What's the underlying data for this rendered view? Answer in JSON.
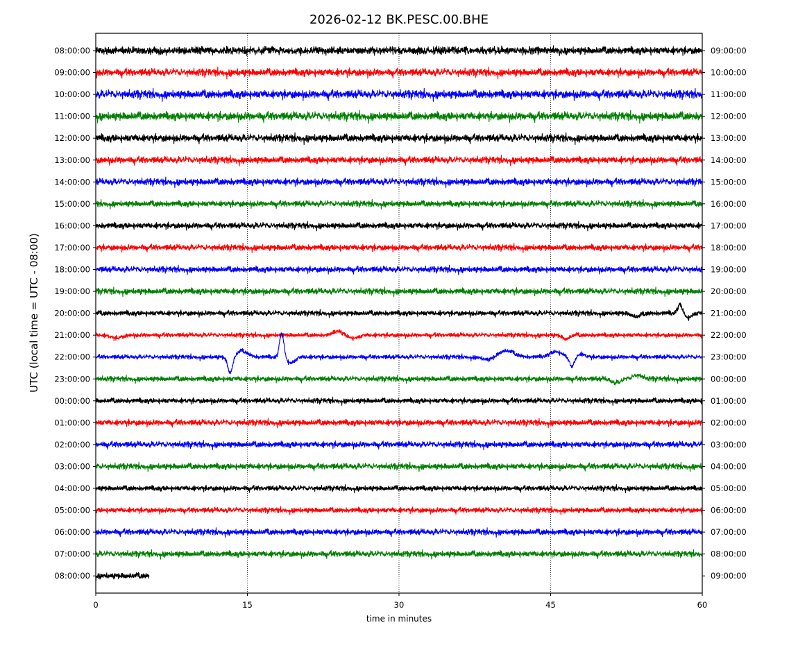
{
  "chart_data": {
    "type": "line",
    "title": "2026-02-12 BK.PESC.00.BHE",
    "xlabel": "time in minutes",
    "ylabel": "UTC (local time = UTC - 08:00)",
    "xlim": [
      0,
      60
    ],
    "x_ticks": [
      0,
      15,
      30,
      45,
      60
    ],
    "x_tick_labels": [
      "0",
      "15",
      "30",
      "45",
      "60"
    ],
    "grid": "vertical dotted lines at 15, 30, 45 minutes",
    "colors": [
      "#000000",
      "#ff0000",
      "#0000ff",
      "#008000"
    ],
    "left_tick_labels": [
      "08:00:00",
      "09:00:00",
      "10:00:00",
      "11:00:00",
      "12:00:00",
      "13:00:00",
      "14:00:00",
      "15:00:00",
      "16:00:00",
      "17:00:00",
      "18:00:00",
      "19:00:00",
      "20:00:00",
      "21:00:00",
      "22:00:00",
      "23:00:00",
      "00:00:00",
      "01:00:00",
      "02:00:00",
      "03:00:00",
      "04:00:00",
      "05:00:00",
      "06:00:00",
      "07:00:00",
      "08:00:00"
    ],
    "right_tick_labels": [
      "09:00:00",
      "10:00:00",
      "11:00:00",
      "12:00:00",
      "13:00:00",
      "14:00:00",
      "15:00:00",
      "16:00:00",
      "17:00:00",
      "18:00:00",
      "19:00:00",
      "20:00:00",
      "21:00:00",
      "22:00:00",
      "23:00:00",
      "00:00:00",
      "01:00:00",
      "02:00:00",
      "03:00:00",
      "04:00:00",
      "05:00:00",
      "06:00:00",
      "07:00:00",
      "08:00:00",
      "09:00:00"
    ],
    "traces": [
      {
        "hour": "08:00:00",
        "color": "#000000",
        "end_minute": 60,
        "noise": 1.0,
        "events": []
      },
      {
        "hour": "09:00:00",
        "color": "#ff0000",
        "end_minute": 60,
        "noise": 1.0,
        "events": []
      },
      {
        "hour": "10:00:00",
        "color": "#0000ff",
        "end_minute": 60,
        "noise": 1.1,
        "events": []
      },
      {
        "hour": "11:00:00",
        "color": "#008000",
        "end_minute": 60,
        "noise": 1.1,
        "events": []
      },
      {
        "hour": "12:00:00",
        "color": "#000000",
        "end_minute": 60,
        "noise": 1.0,
        "events": []
      },
      {
        "hour": "13:00:00",
        "color": "#ff0000",
        "end_minute": 60,
        "noise": 0.9,
        "events": []
      },
      {
        "hour": "14:00:00",
        "color": "#0000ff",
        "end_minute": 60,
        "noise": 0.9,
        "events": []
      },
      {
        "hour": "15:00:00",
        "color": "#008000",
        "end_minute": 60,
        "noise": 0.8,
        "events": []
      },
      {
        "hour": "16:00:00",
        "color": "#000000",
        "end_minute": 60,
        "noise": 0.8,
        "events": []
      },
      {
        "hour": "17:00:00",
        "color": "#ff0000",
        "end_minute": 60,
        "noise": 0.8,
        "events": []
      },
      {
        "hour": "18:00:00",
        "color": "#0000ff",
        "end_minute": 60,
        "noise": 0.8,
        "events": []
      },
      {
        "hour": "19:00:00",
        "color": "#008000",
        "end_minute": 60,
        "noise": 0.8,
        "events": []
      },
      {
        "hour": "20:00:00",
        "color": "#000000",
        "end_minute": 60,
        "noise": 0.7,
        "events": [
          {
            "t": 53.5,
            "a": 1.2,
            "w": 0.6
          },
          {
            "t": 57.8,
            "a": -3.0,
            "w": 0.35
          },
          {
            "t": 58.6,
            "a": 1.5,
            "w": 0.5
          }
        ]
      },
      {
        "hour": "21:00:00",
        "color": "#ff0000",
        "end_minute": 60,
        "noise": 0.6,
        "events": [
          {
            "t": 2.0,
            "a": 1.0,
            "w": 0.8
          },
          {
            "t": 24.0,
            "a": -1.5,
            "w": 0.6
          },
          {
            "t": 25.5,
            "a": 1.0,
            "w": 0.8
          },
          {
            "t": 46.5,
            "a": 1.3,
            "w": 0.5
          }
        ]
      },
      {
        "hour": "22:00:00",
        "color": "#0000ff",
        "end_minute": 60,
        "noise": 0.6,
        "events": [
          {
            "t": 13.3,
            "a": 5.5,
            "w": 0.35
          },
          {
            "t": 14.5,
            "a": -2.0,
            "w": 0.8
          },
          {
            "t": 18.4,
            "a": -8.5,
            "w": 0.3
          },
          {
            "t": 19.3,
            "a": 2.0,
            "w": 0.6
          },
          {
            "t": 40.5,
            "a": -2.2,
            "w": 1.2
          },
          {
            "t": 39.0,
            "a": 1.2,
            "w": 0.9
          },
          {
            "t": 45.5,
            "a": -1.8,
            "w": 0.9
          },
          {
            "t": 47.1,
            "a": 3.5,
            "w": 0.35
          },
          {
            "t": 48.0,
            "a": -1.0,
            "w": 0.5
          }
        ]
      },
      {
        "hour": "23:00:00",
        "color": "#008000",
        "end_minute": 60,
        "noise": 0.7,
        "events": [
          {
            "t": 51.5,
            "a": 1.3,
            "w": 0.7
          },
          {
            "t": 53.6,
            "a": -1.2,
            "w": 0.7
          }
        ]
      },
      {
        "hour": "00:00:00",
        "color": "#000000",
        "end_minute": 60,
        "noise": 0.7,
        "events": []
      },
      {
        "hour": "01:00:00",
        "color": "#ff0000",
        "end_minute": 60,
        "noise": 0.8,
        "events": []
      },
      {
        "hour": "02:00:00",
        "color": "#0000ff",
        "end_minute": 60,
        "noise": 0.8,
        "events": []
      },
      {
        "hour": "03:00:00",
        "color": "#008000",
        "end_minute": 60,
        "noise": 0.8,
        "events": []
      },
      {
        "hour": "04:00:00",
        "color": "#000000",
        "end_minute": 60,
        "noise": 0.7,
        "events": []
      },
      {
        "hour": "05:00:00",
        "color": "#ff0000",
        "end_minute": 60,
        "noise": 0.7,
        "events": []
      },
      {
        "hour": "06:00:00",
        "color": "#0000ff",
        "end_minute": 60,
        "noise": 0.8,
        "events": []
      },
      {
        "hour": "07:00:00",
        "color": "#008000",
        "end_minute": 60,
        "noise": 0.8,
        "events": []
      },
      {
        "hour": "08:00:00",
        "color": "#000000",
        "end_minute": 5.3,
        "noise": 0.8,
        "events": []
      }
    ]
  }
}
